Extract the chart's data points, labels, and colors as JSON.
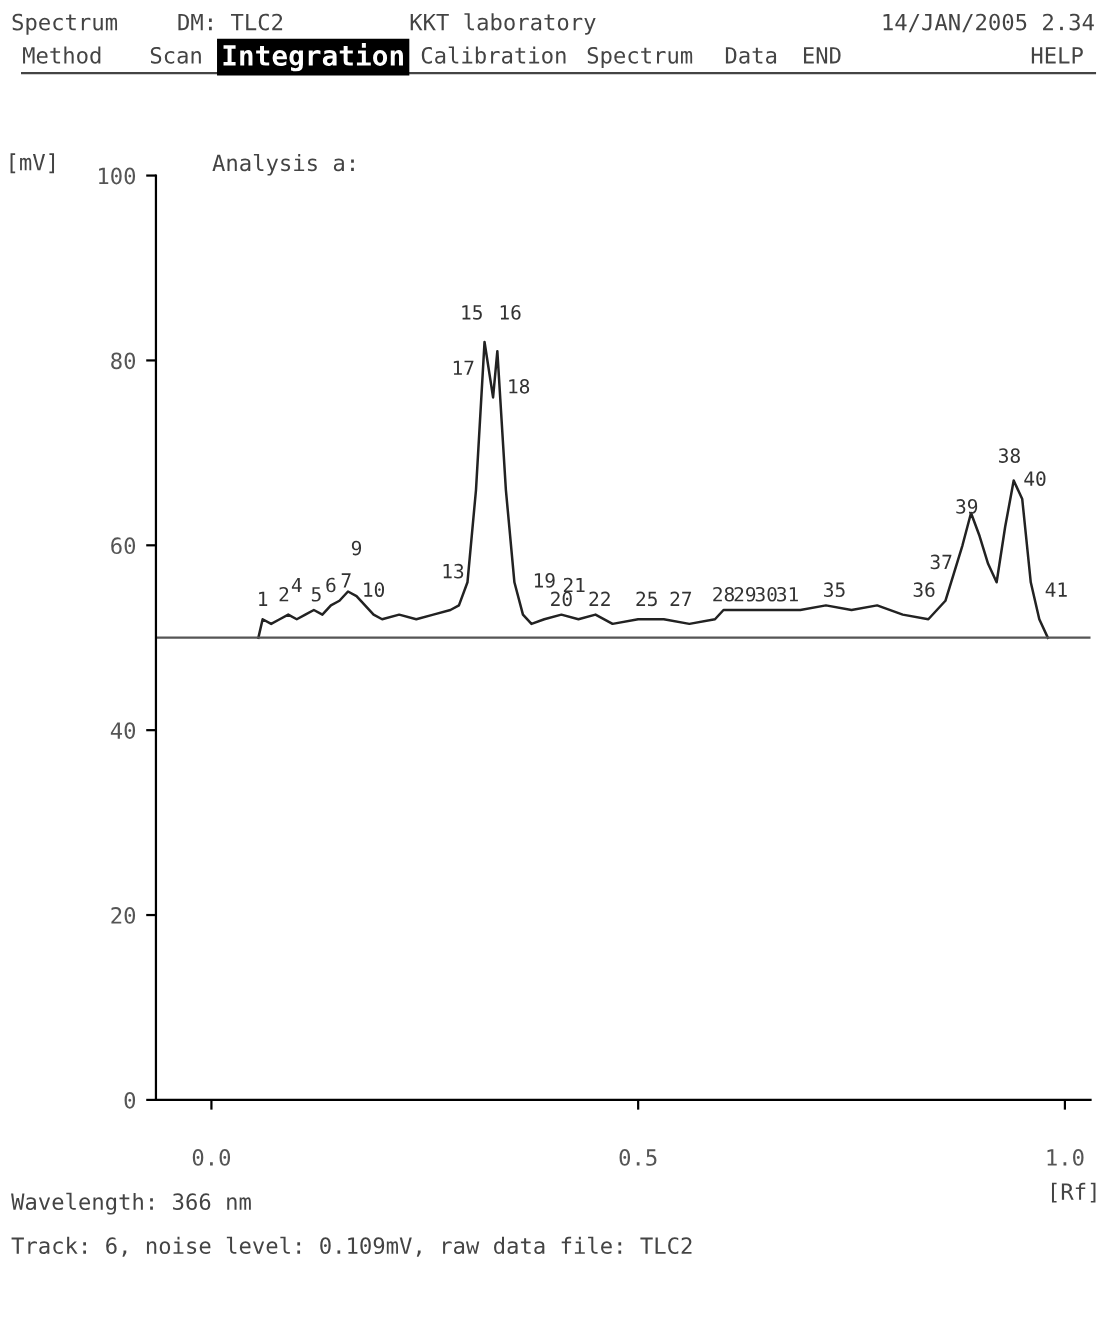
{
  "chart_data": {
    "type": "line",
    "title": "Analysis a:",
    "xlabel": "[Rf]",
    "ylabel": "[mV]",
    "xlim": [
      -0.065,
      1.03
    ],
    "ylim": [
      0,
      100
    ],
    "xticks": [
      {
        "value": 0,
        "label": "0.0"
      },
      {
        "value": 0.5,
        "label": "0.5"
      },
      {
        "value": 1,
        "label": "1.0"
      }
    ],
    "yticks": [
      0,
      20,
      40,
      60,
      80,
      100
    ],
    "grid": false,
    "legend": false,
    "marker": "none",
    "line_style": "solid",
    "ref_lines": [
      {
        "axis": "y",
        "value": 50,
        "label": null,
        "color": "#555555"
      }
    ],
    "series": [
      {
        "color": "#222222",
        "x": [
          0.055,
          0.06,
          0.07,
          0.08,
          0.09,
          0.1,
          0.11,
          0.12,
          0.13,
          0.14,
          0.15,
          0.16,
          0.17,
          0.18,
          0.19,
          0.2,
          0.22,
          0.24,
          0.26,
          0.28,
          0.29,
          0.3,
          0.31,
          0.32,
          0.33,
          0.335,
          0.345,
          0.355,
          0.365,
          0.375,
          0.39,
          0.41,
          0.43,
          0.45,
          0.47,
          0.5,
          0.53,
          0.56,
          0.59,
          0.6,
          0.63,
          0.66,
          0.69,
          0.72,
          0.75,
          0.78,
          0.81,
          0.84,
          0.86,
          0.87,
          0.88,
          0.89,
          0.9,
          0.91,
          0.92,
          0.93,
          0.94,
          0.95,
          0.96,
          0.97,
          0.98
        ],
        "values": [
          50,
          52,
          51.5,
          52,
          52.5,
          52,
          52.5,
          53,
          52.5,
          53.5,
          54,
          55,
          54.5,
          53.5,
          52.5,
          52,
          52.5,
          52,
          52.5,
          53,
          53.5,
          56,
          66,
          82,
          76,
          81,
          66,
          56,
          52.5,
          51.5,
          52,
          52.5,
          52,
          52.5,
          51.5,
          52,
          52,
          51.5,
          52,
          53,
          53,
          53,
          53,
          53.5,
          53,
          53.5,
          52.5,
          52,
          54,
          57,
          60,
          63.5,
          61,
          58,
          56,
          62,
          67,
          65,
          56,
          52,
          50
        ]
      }
    ],
    "annotations": [
      "Spectrum",
      "DM: TLC2",
      "KKT laboratory",
      "14/JAN/2005 2.34",
      "Method",
      "Scan",
      "Integration",
      "Calibration",
      "Spectrum",
      "Data",
      "END",
      "HELP",
      "Wavelength: 366 nm",
      "Track: 6, noise level: 0.109mV, raw data file: TLC2",
      "1",
      "2",
      "4",
      "5",
      "6",
      "7",
      "9",
      "10",
      "13",
      "17",
      "15",
      "16",
      "18",
      "19",
      "20",
      "21",
      "22",
      "25",
      "27",
      "28",
      "29",
      "30",
      "31",
      "35",
      "36",
      "37",
      "39",
      "38",
      "40",
      "41"
    ]
  }
}
